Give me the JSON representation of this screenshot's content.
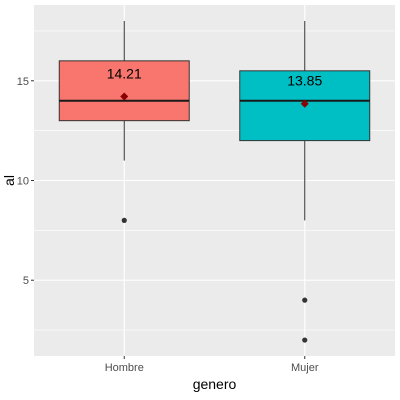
{
  "chart_data": {
    "type": "boxplot",
    "xlabel": "genero",
    "ylabel": "al",
    "ylim": [
      1.2,
      18.8
    ],
    "yticks": [
      5,
      10,
      15
    ],
    "grid": true,
    "legend": "none",
    "panel_background": "#EBEBEB",
    "grid_color": "#FFFFFF",
    "mean_marker_color": "#8B0000",
    "categories": [
      "Hombre",
      "Mujer"
    ],
    "boxes": [
      {
        "category": "Hombre",
        "fill": "#F8766D",
        "q1": 13,
        "median": 14,
        "q3": 16,
        "whisker_low": 11,
        "whisker_high": 18,
        "mean": 14.21,
        "mean_label": "14.21",
        "outliers": [
          8
        ]
      },
      {
        "category": "Mujer",
        "fill": "#00BFC4",
        "q1": 12,
        "median": 14,
        "q3": 15.5,
        "whisker_low": 8,
        "whisker_high": 18,
        "mean": 13.85,
        "mean_label": "13.85",
        "outliers": [
          4,
          2
        ]
      }
    ]
  }
}
